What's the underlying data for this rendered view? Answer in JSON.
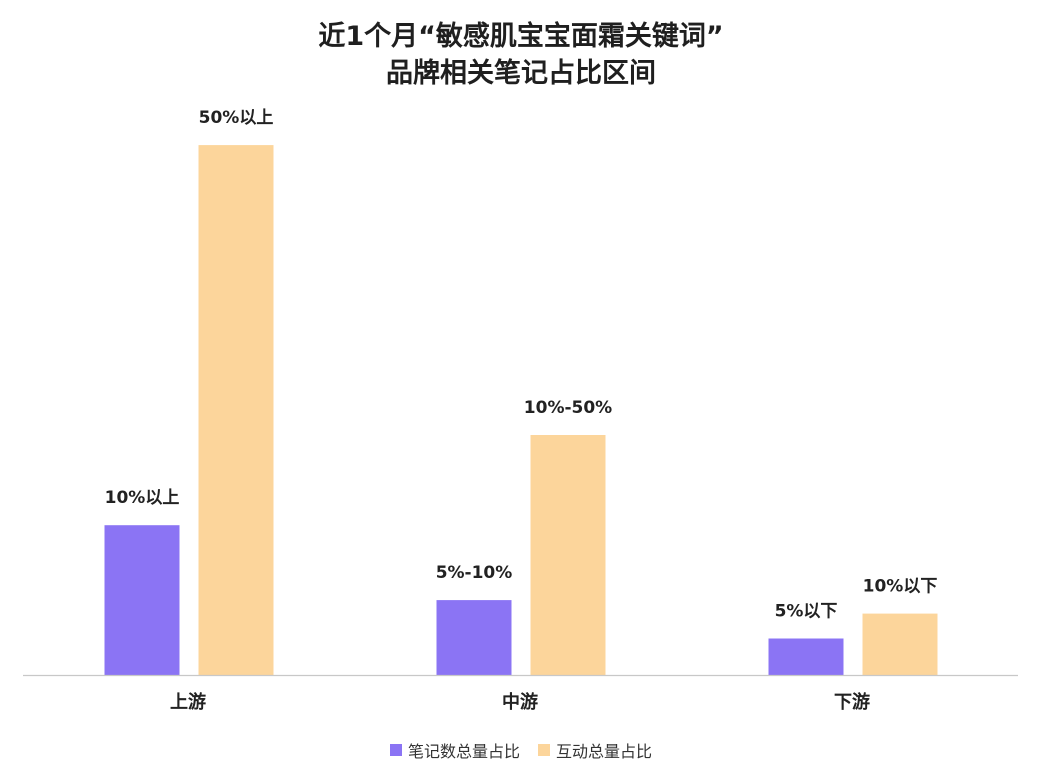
{
  "chart_data": {
    "type": "bar",
    "title_line1": "近1个月“敏感肌宝宝面霜关键词”",
    "title_line2": "品牌相关笔记占比区间",
    "categories": [
      "上游",
      "中游",
      "下游"
    ],
    "series": [
      {
        "name": "笔记数总量占比",
        "color": "#8B74F4",
        "values": [
          39,
          19.5,
          9.5
        ],
        "labels": [
          "10%以上",
          "5%-10%",
          "5%以下"
        ]
      },
      {
        "name": "互动总量占比",
        "color": "#FCD59B",
        "values": [
          138,
          62.5,
          16
        ],
        "labels": [
          "50%以上",
          "10%-50%",
          "10%以下"
        ]
      }
    ],
    "ylim": [
      0,
      150
    ],
    "grid": false,
    "legend_position": "bottom-center"
  }
}
